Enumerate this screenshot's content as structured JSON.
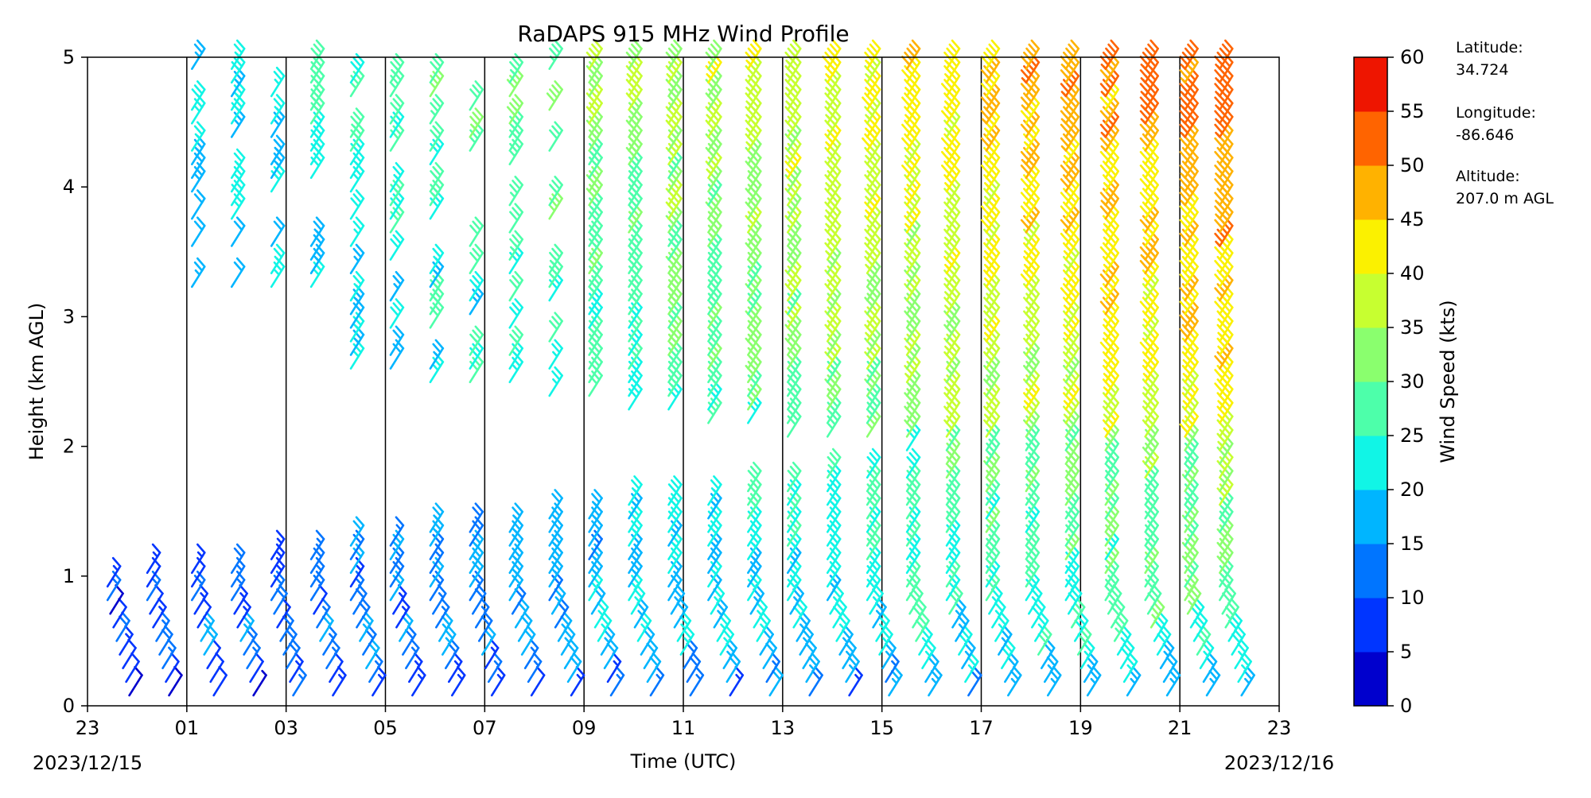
{
  "chart_data": {
    "type": "wind_barb_profile",
    "title": "RaDAPS 915 MHz Wind Profile",
    "xlabel": "Time (UTC)",
    "ylabel": "Height (km AGL)",
    "x_tick_labels": [
      "23",
      "01",
      "03",
      "05",
      "07",
      "09",
      "11",
      "13",
      "15",
      "17",
      "19",
      "21",
      "23"
    ],
    "x_start_date": "2023/12/15",
    "x_end_date": "2023/12/16",
    "y_ticks": [
      0,
      1,
      2,
      3,
      4,
      5
    ],
    "ylim": [
      0,
      5
    ],
    "grid": "vertical lines at each labeled hour",
    "colorbar": {
      "label": "Wind Speed (kts)",
      "ticks": [
        0,
        5,
        10,
        15,
        20,
        25,
        30,
        35,
        40,
        45,
        50,
        55,
        60
      ],
      "colors": [
        "#000080",
        "#0000cd",
        "#0035ff",
        "#0075ff",
        "#00b5ff",
        "#11f5e6",
        "#4dffaa",
        "#8aff6e",
        "#c7ff30",
        "#fbf100",
        "#ffb200",
        "#ff6400",
        "#ee1500",
        "#800000"
      ]
    },
    "station_info": {
      "latitude_label": "Latitude:",
      "latitude_value": "34.724",
      "longitude_label": "Longitude:",
      "longitude_value": "-86.646",
      "altitude_label": "Altitude:",
      "altitude_value": "207.0 m AGL"
    },
    "profile_times_hours_after_start": [
      0.5,
      1.3,
      2.2,
      3.0,
      3.8,
      4.6,
      5.4,
      6.2,
      7.0,
      7.8,
      8.6,
      9.4,
      10.2,
      11.0,
      11.8,
      12.6,
      13.4,
      14.2,
      15.0,
      15.8,
      16.6,
      17.4,
      18.2,
      19.0,
      19.8,
      20.6,
      21.4,
      22.2,
      22.9
    ],
    "note_barbs": "Each column is a vertical profile of wind barbs; barb colour encodes wind speed"
  }
}
